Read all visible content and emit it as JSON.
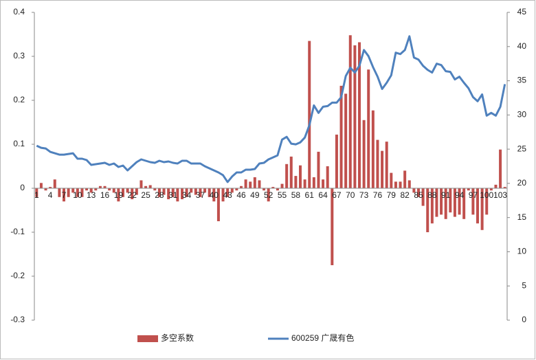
{
  "chart_data": {
    "type": "bar-line",
    "categories": [
      "1",
      null,
      null,
      "4",
      null,
      null,
      "7",
      null,
      null,
      "10",
      null,
      null,
      "13",
      null,
      null,
      "16",
      null,
      null,
      "19",
      null,
      null,
      "22",
      null,
      null,
      "25",
      null,
      null,
      "28",
      null,
      null,
      "31",
      null,
      null,
      "34",
      null,
      null,
      "37",
      null,
      null,
      "40",
      null,
      null,
      "43",
      null,
      null,
      "46",
      null,
      null,
      "49",
      null,
      null,
      "52",
      null,
      null,
      "55",
      null,
      null,
      "58",
      null,
      null,
      "61",
      null,
      null,
      "64",
      null,
      null,
      "67",
      null,
      null,
      "70",
      null,
      null,
      "73",
      null,
      null,
      "76",
      null,
      null,
      "79",
      null,
      null,
      "82",
      null,
      null,
      "85",
      null,
      null,
      "88",
      null,
      null,
      "91",
      null,
      null,
      "94",
      null,
      null,
      "97",
      null,
      null,
      "100",
      null,
      null,
      "103",
      null
    ],
    "series": [
      {
        "name": "多空系数",
        "color": "#c0504d",
        "kind": "bar",
        "axis": "y",
        "values": [
          -0.02,
          0.012,
          -0.005,
          0.003,
          0.02,
          -0.02,
          -0.03,
          -0.02,
          -0.01,
          -0.02,
          -0.02,
          -0.005,
          -0.01,
          -0.005,
          0.005,
          0.005,
          -0.005,
          -0.01,
          -0.03,
          -0.02,
          -0.01,
          -0.025,
          -0.015,
          0.018,
          0.005,
          0.007,
          -0.005,
          -0.02,
          -0.015,
          -0.025,
          -0.02,
          -0.03,
          -0.025,
          -0.02,
          -0.01,
          -0.015,
          -0.02,
          -0.01,
          -0.02,
          -0.03,
          -0.075,
          -0.03,
          -0.02,
          -0.01,
          -0.005,
          0.005,
          0.02,
          0.015,
          0.025,
          0.018,
          -0.005,
          -0.03,
          0.003,
          -0.005,
          0.01,
          0.055,
          0.072,
          0.028,
          0.052,
          0.02,
          0.335,
          0.025,
          0.083,
          0.02,
          0.05,
          -0.175,
          0.122,
          0.233,
          0.215,
          0.348,
          0.325,
          0.332,
          0.155,
          0.27,
          0.177,
          0.11,
          0.085,
          0.106,
          0.035,
          0.015,
          0.015,
          0.04,
          0.018,
          -0.01,
          -0.02,
          -0.04,
          -0.1,
          -0.08,
          -0.065,
          -0.06,
          -0.07,
          -0.055,
          -0.065,
          -0.06,
          -0.07,
          -0.005,
          -0.06,
          -0.08,
          -0.095,
          -0.06,
          -0.005,
          0.008,
          0.088,
          0.003
        ]
      },
      {
        "name": "600259 广晟有色",
        "color": "#4f81bd",
        "kind": "line",
        "axis": "y2",
        "values": [
          25.5,
          25.2,
          25.1,
          24.6,
          24.4,
          24.2,
          24.2,
          24.3,
          24.4,
          23.6,
          23.6,
          23.4,
          22.7,
          22.8,
          22.9,
          23.0,
          22.7,
          22.9,
          22.4,
          22.6,
          21.9,
          22.5,
          23.1,
          23.5,
          23.3,
          23.1,
          23.0,
          23.3,
          23.1,
          23.2,
          23.0,
          22.9,
          23.3,
          23.3,
          22.9,
          22.9,
          22.9,
          22.5,
          22.2,
          21.9,
          21.6,
          21.2,
          20.2,
          21.0,
          21.6,
          21.6,
          22.0,
          22.0,
          22.1,
          22.9,
          23.0,
          23.5,
          23.8,
          24.1,
          26.4,
          26.8,
          25.8,
          25.7,
          26.0,
          26.7,
          28.5,
          31.4,
          30.3,
          31.2,
          31.3,
          31.8,
          31.8,
          32.6,
          35.7,
          36.9,
          36.2,
          37.2,
          39.5,
          38.6,
          37.0,
          35.6,
          33.8,
          34.7,
          35.8,
          39.1,
          38.9,
          39.5,
          41.5,
          38.4,
          38.1,
          37.2,
          36.6,
          36.2,
          37.5,
          37.3,
          36.4,
          36.3,
          35.2,
          35.6,
          34.7,
          33.9,
          32.6,
          32.0,
          33.0,
          29.9,
          30.3,
          29.9,
          31.2,
          34.5
        ]
      }
    ],
    "ylim": [
      -0.3,
      0.4
    ],
    "yticks": [
      -0.3,
      -0.2,
      -0.1,
      0,
      0.1,
      0.2,
      0.3,
      0.4
    ],
    "y2lim": [
      0,
      45
    ],
    "y2ticks": [
      0,
      5,
      10,
      15,
      20,
      25,
      30,
      35,
      40,
      45
    ],
    "legend": "bottom"
  }
}
